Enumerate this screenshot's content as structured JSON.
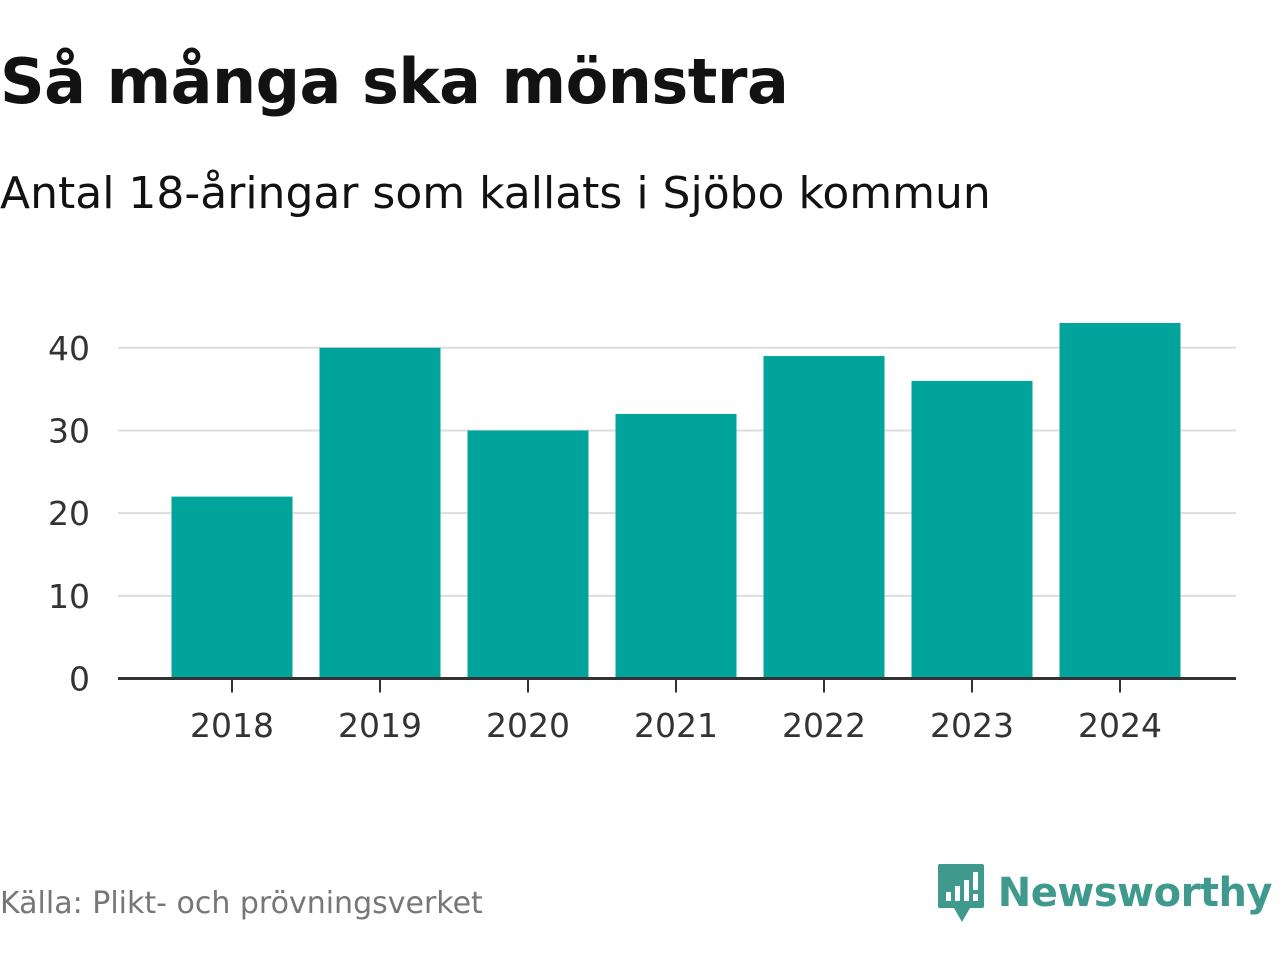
{
  "title": "Så många ska mönstra",
  "subtitle": "Antal 18-åringar som kallats i Sjöbo kommun",
  "source": "Källa: Plikt- och prövningsverket",
  "brand": {
    "name": "Newsworthy",
    "icon": "newsworthy-logo-icon",
    "color": "#3f9a8d"
  },
  "colors": {
    "bar": "#00a49a",
    "grid": "#dddddd",
    "axis": "#333333"
  },
  "chart_data": {
    "type": "bar",
    "categories": [
      "2018",
      "2019",
      "2020",
      "2021",
      "2022",
      "2023",
      "2024"
    ],
    "values": [
      22,
      40,
      30,
      32,
      39,
      36,
      43
    ],
    "title": "Så många ska mönstra",
    "subtitle": "Antal 18-åringar som kallats i Sjöbo kommun",
    "xlabel": "",
    "ylabel": "",
    "ylim": [
      0,
      43
    ],
    "yticks": [
      0,
      10,
      20,
      30,
      40
    ],
    "grid": true,
    "legend": "none"
  }
}
